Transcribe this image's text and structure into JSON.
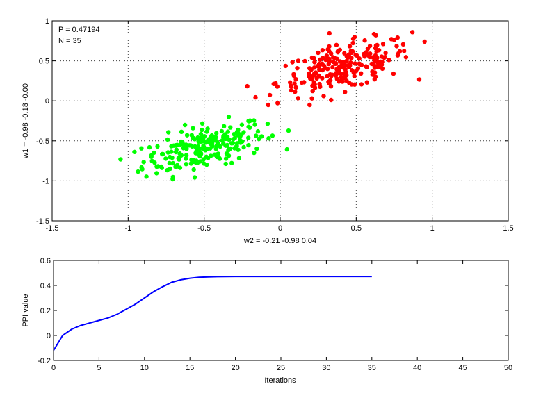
{
  "chart_data": [
    {
      "type": "scatter",
      "annotation": [
        "P = 0.47194",
        "N = 35"
      ],
      "xlabel": "w2 = -0.21  -0.98  0.04",
      "ylabel": "w1 = -0.98  -0.18  -0.00",
      "xlim": [
        -1.5,
        1.5
      ],
      "ylim": [
        -1.5,
        1
      ],
      "xticks": [
        -1.5,
        -1,
        -0.5,
        0,
        0.5,
        1,
        1.5
      ],
      "xtick_labels": [
        "-1.5",
        "-1",
        "-0.5",
        "0",
        "0.5",
        "1",
        "1.5"
      ],
      "yticks": [
        -1.5,
        -1,
        -0.5,
        0,
        0.5,
        1
      ],
      "ytick_labels": [
        "-1.5",
        "-1",
        "-0.5",
        "0",
        "0.5",
        "1"
      ],
      "grid": true,
      "series": [
        {
          "color": "#00ff00",
          "center": [
            -0.5,
            -0.58
          ],
          "spread": [
            0.2,
            0.16
          ],
          "count": 230,
          "x_range": [
            -1.05,
            0.2
          ],
          "y_range": [
            -1.0,
            -0.2
          ]
        },
        {
          "color": "#ff0000",
          "center": [
            0.42,
            0.42
          ],
          "spread": [
            0.22,
            0.17
          ],
          "count": 230,
          "x_range": [
            -0.3,
            1.06
          ],
          "y_range": [
            -0.05,
            1.0
          ]
        }
      ]
    },
    {
      "type": "line",
      "xlabel": "Iterations",
      "ylabel": "PPI value",
      "xlim": [
        0,
        50
      ],
      "ylim": [
        -0.2,
        0.6
      ],
      "xticks": [
        0,
        5,
        10,
        15,
        20,
        25,
        30,
        35,
        40,
        45,
        50
      ],
      "xtick_labels": [
        "0",
        "5",
        "10",
        "15",
        "20",
        "25",
        "30",
        "35",
        "40",
        "45",
        "50"
      ],
      "yticks": [
        -0.2,
        0,
        0.2,
        0.4,
        0.6
      ],
      "ytick_labels": [
        "-0.2",
        "0",
        "0.2",
        "0.4",
        "0.6"
      ],
      "grid": false,
      "series": [
        {
          "color": "#0000ff",
          "x": [
            0,
            1,
            2,
            3,
            4,
            5,
            6,
            7,
            8,
            9,
            10,
            11,
            12,
            13,
            14,
            15,
            16,
            17,
            18,
            19,
            20,
            21,
            22,
            23,
            24,
            25,
            26,
            27,
            28,
            29,
            30,
            31,
            32,
            33,
            34,
            35
          ],
          "values": [
            -0.12,
            0.0,
            0.05,
            0.08,
            0.1,
            0.12,
            0.14,
            0.17,
            0.21,
            0.25,
            0.3,
            0.35,
            0.39,
            0.425,
            0.445,
            0.458,
            0.465,
            0.468,
            0.47,
            0.471,
            0.4715,
            0.4718,
            0.4719,
            0.4719,
            0.4719,
            0.4719,
            0.4719,
            0.4719,
            0.4719,
            0.4719,
            0.4719,
            0.4719,
            0.4719,
            0.4719,
            0.4719,
            0.47194
          ]
        }
      ]
    }
  ]
}
